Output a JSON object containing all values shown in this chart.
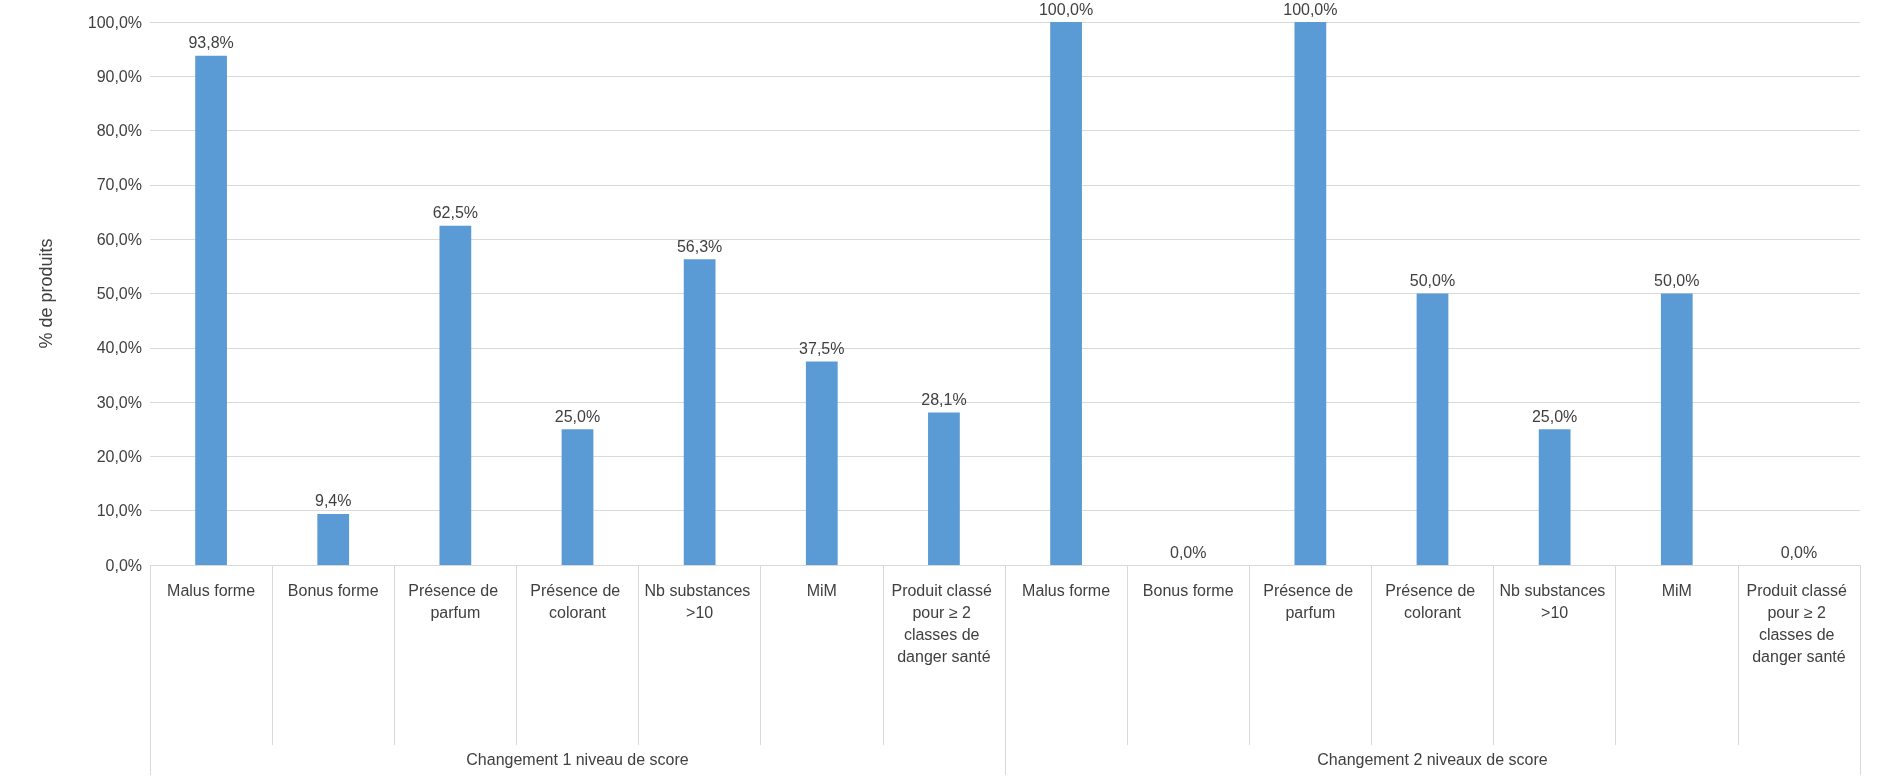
{
  "chart_data": {
    "type": "bar",
    "ylabel": "% de produits",
    "categories": [
      "Malus forme",
      "Bonus forme",
      "Présence de parfum",
      "Présence de colorant",
      "Nb substances >10",
      "MiM",
      "Produit classé pour ≥ 2 classes de danger santé",
      "Malus forme",
      "Bonus forme",
      "Présence de parfum",
      "Présence de colorant",
      "Nb substances >10",
      "MiM",
      "Produit classé pour ≥ 2 classes de danger santé"
    ],
    "values": [
      93.8,
      9.4,
      62.5,
      25.0,
      56.3,
      37.5,
      28.1,
      100.0,
      0.0,
      100.0,
      50.0,
      25.0,
      50.0,
      0.0
    ],
    "value_labels": [
      "93,8%",
      "9,4%",
      "62,5%",
      "25,0%",
      "56,3%",
      "37,5%",
      "28,1%",
      "100,0%",
      "0,0%",
      "100,0%",
      "50,0%",
      "25,0%",
      "50,0%",
      "0,0%"
    ],
    "color": "#5b9bd5",
    "ylim": [
      0,
      100
    ],
    "yticks": [
      {
        "value": 0,
        "label": "0,0%"
      },
      {
        "value": 10,
        "label": "10,0%"
      },
      {
        "value": 20,
        "label": "20,0%"
      },
      {
        "value": 30,
        "label": "30,0%"
      },
      {
        "value": 40,
        "label": "40,0%"
      },
      {
        "value": 50,
        "label": "50,0%"
      },
      {
        "value": 60,
        "label": "60,0%"
      },
      {
        "value": 70,
        "label": "70,0%"
      },
      {
        "value": 80,
        "label": "80,0%"
      },
      {
        "value": 90,
        "label": "90,0%"
      },
      {
        "value": 100,
        "label": "100,0%"
      }
    ],
    "grid": "y",
    "annotations": [
      "Changement 1 niveau de score",
      "Changement 2 niveaux de score"
    ]
  }
}
